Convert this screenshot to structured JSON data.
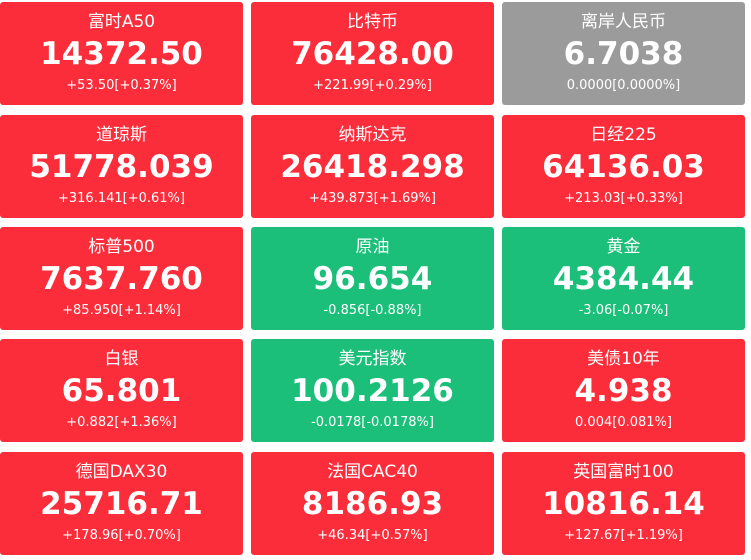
{
  "tiles": [
    {
      "name": "富时A50",
      "price": "14372.50",
      "change": "+53.50[+0.37%]",
      "trend": "up"
    },
    {
      "name": "比特币",
      "price": "76428.00",
      "change": "+221.99[+0.29%]",
      "trend": "up"
    },
    {
      "name": "离岸人民币",
      "price": "6.7038",
      "change": "0.0000[0.0000%]",
      "trend": "flat"
    },
    {
      "name": "道琼斯",
      "price": "51778.039",
      "change": "+316.141[+0.61%]",
      "trend": "up"
    },
    {
      "name": "纳斯达克",
      "price": "26418.298",
      "change": "+439.873[+1.69%]",
      "trend": "up"
    },
    {
      "name": "日经225",
      "price": "64136.03",
      "change": "+213.03[+0.33%]",
      "trend": "up"
    },
    {
      "name": "标普500",
      "price": "7637.760",
      "change": "+85.950[+1.14%]",
      "trend": "up"
    },
    {
      "name": "原油",
      "price": "96.654",
      "change": "-0.856[-0.88%]",
      "trend": "down"
    },
    {
      "name": "黄金",
      "price": "4384.44",
      "change": "-3.06[-0.07%]",
      "trend": "down"
    },
    {
      "name": "白银",
      "price": "65.801",
      "change": "+0.882[+1.36%]",
      "trend": "up"
    },
    {
      "name": "美元指数",
      "price": "100.2126",
      "change": "-0.0178[-0.0178%]",
      "trend": "down"
    },
    {
      "name": "美债10年",
      "price": "4.938",
      "change": "0.004[0.081%]",
      "trend": "up"
    },
    {
      "name": "德国DAX30",
      "price": "25716.71",
      "change": "+178.96[+0.70%]",
      "trend": "up"
    },
    {
      "name": "法国CAC40",
      "price": "8186.93",
      "change": "+46.34[+0.57%]",
      "trend": "up"
    },
    {
      "name": "英国富时100",
      "price": "10816.14",
      "change": "+127.67[+1.19%]",
      "trend": "up"
    }
  ],
  "colors": {
    "up": "#fb2d3a",
    "down": "#1cbf79",
    "flat": "#9b9b9b"
  }
}
